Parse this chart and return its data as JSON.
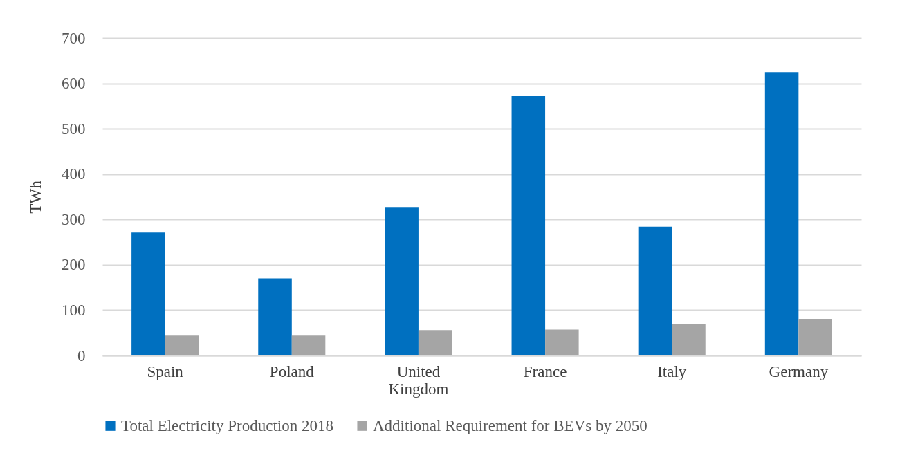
{
  "chart_data": {
    "type": "bar",
    "ylabel": "TWh",
    "categories": [
      "Spain",
      "Poland",
      "United Kingdom",
      "France",
      "Italy",
      "Germany"
    ],
    "series": [
      {
        "name": "Total Electricity Production 2018",
        "color": "#0070c0",
        "values": [
          271,
          170,
          326,
          572,
          284,
          625
        ]
      },
      {
        "name": "Additional Requirement for BEVs by 2050",
        "color": "#a5a5a5",
        "values": [
          44,
          44,
          56,
          57,
          70,
          81
        ]
      }
    ],
    "ylim": [
      0,
      700
    ],
    "yticks": [
      0,
      100,
      200,
      300,
      400,
      500,
      600,
      700
    ],
    "grid": "y",
    "legend": "bottom"
  }
}
